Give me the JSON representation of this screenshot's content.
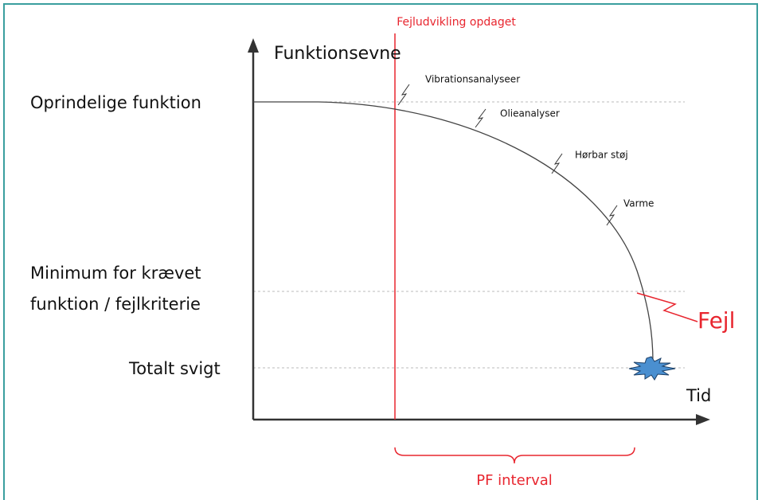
{
  "detected_label": "Fejludvikling opdaget",
  "y_axis_label": "Funktionsevne",
  "x_axis_label": "Tid",
  "levels": {
    "original": "Oprindelige funktion",
    "minimum": [
      "Minimum for krævet",
      "funktion / fejlkriterie"
    ],
    "total": "Totalt svigt"
  },
  "indicators": [
    "Vibrationsanalyseer",
    "Olieanalyser",
    "Hørbar støj",
    "Varme"
  ],
  "failure_label": "Fejl",
  "interval_label": "PF interval"
}
